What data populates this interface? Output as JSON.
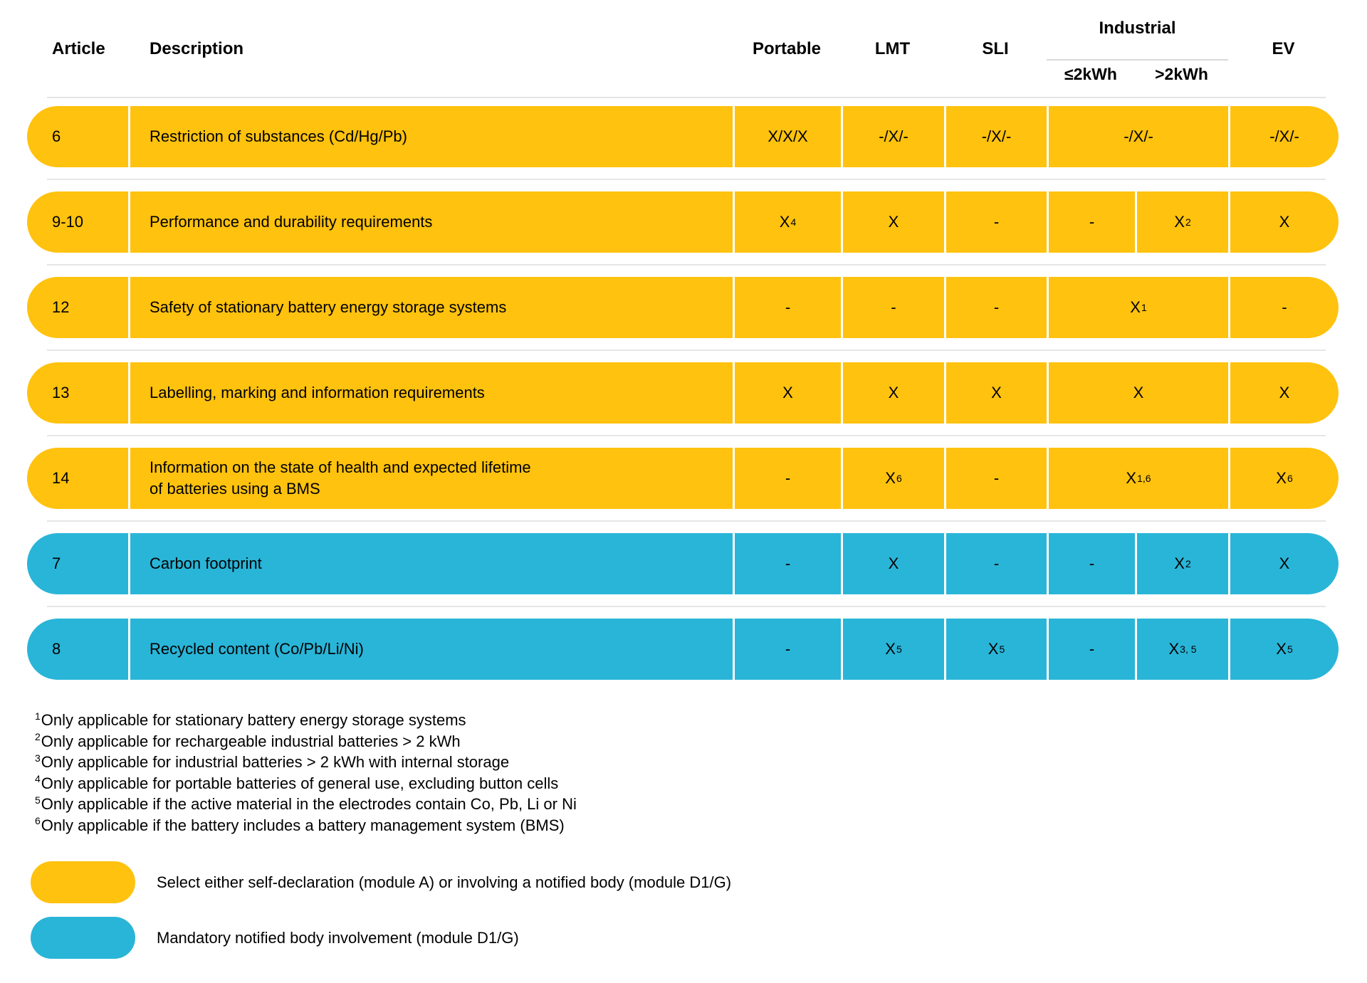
{
  "colors": {
    "yellow": "#FFC20E",
    "blue": "#29B5D8",
    "separator": "#E6E6E6",
    "industrial_underline": "#D9D9D9"
  },
  "header": {
    "article": "Article",
    "description": "Description",
    "portable": "Portable",
    "lmt": "LMT",
    "sli": "SLI",
    "industrial": "Industrial",
    "industrial_sub_le": "≤2kWh",
    "industrial_sub_gt": ">2kWh",
    "ev": "EV"
  },
  "rows": [
    {
      "article": "6",
      "description": "Restriction of substances (Cd/Hg/Pb)",
      "color": "yellow",
      "industrial_merged": true,
      "cells": {
        "portable": {
          "base": "X/X/X",
          "sup": ""
        },
        "lmt": {
          "base": "-/X/-",
          "sup": ""
        },
        "sli": {
          "base": "-/X/-",
          "sup": ""
        },
        "industrial": {
          "base": "-/X/-",
          "sup": ""
        },
        "ev": {
          "base": "-/X/-",
          "sup": ""
        }
      }
    },
    {
      "article": "9-10",
      "description": "Performance and durability requirements",
      "color": "yellow",
      "industrial_merged": false,
      "cells": {
        "portable": {
          "base": "X",
          "sup": "4"
        },
        "lmt": {
          "base": "X",
          "sup": ""
        },
        "sli": {
          "base": "-",
          "sup": ""
        },
        "industrial_le": {
          "base": "-",
          "sup": ""
        },
        "industrial_gt": {
          "base": "X",
          "sup": "2"
        },
        "ev": {
          "base": "X",
          "sup": ""
        }
      }
    },
    {
      "article": "12",
      "description": "Safety of stationary battery energy storage systems",
      "color": "yellow",
      "industrial_merged": true,
      "cells": {
        "portable": {
          "base": "-",
          "sup": ""
        },
        "lmt": {
          "base": "-",
          "sup": ""
        },
        "sli": {
          "base": "-",
          "sup": ""
        },
        "industrial": {
          "base": "X",
          "sup": "1"
        },
        "ev": {
          "base": "-",
          "sup": ""
        }
      }
    },
    {
      "article": "13",
      "description": "Labelling, marking and information requirements",
      "color": "yellow",
      "industrial_merged": true,
      "cells": {
        "portable": {
          "base": "X",
          "sup": ""
        },
        "lmt": {
          "base": "X",
          "sup": ""
        },
        "sli": {
          "base": "X",
          "sup": ""
        },
        "industrial": {
          "base": "X",
          "sup": ""
        },
        "ev": {
          "base": "X",
          "sup": ""
        }
      }
    },
    {
      "article": "14",
      "description": "Information on the state of health and expected lifetime\nof batteries using a BMS",
      "color": "yellow",
      "industrial_merged": true,
      "cells": {
        "portable": {
          "base": "-",
          "sup": ""
        },
        "lmt": {
          "base": "X",
          "sup": "6"
        },
        "sli": {
          "base": "-",
          "sup": ""
        },
        "industrial": {
          "base": "X",
          "sup": "1,6"
        },
        "ev": {
          "base": "X",
          "sup": "6"
        }
      }
    },
    {
      "article": "7",
      "description": "Carbon footprint",
      "color": "blue",
      "industrial_merged": false,
      "cells": {
        "portable": {
          "base": "-",
          "sup": ""
        },
        "lmt": {
          "base": "X",
          "sup": ""
        },
        "sli": {
          "base": "-",
          "sup": ""
        },
        "industrial_le": {
          "base": "-",
          "sup": ""
        },
        "industrial_gt": {
          "base": "X",
          "sup": "2"
        },
        "ev": {
          "base": "X",
          "sup": ""
        }
      }
    },
    {
      "article": "8",
      "description": "Recycled content (Co/Pb/Li/Ni)",
      "color": "blue",
      "industrial_merged": false,
      "cells": {
        "portable": {
          "base": "-",
          "sup": ""
        },
        "lmt": {
          "base": "X",
          "sup": "5"
        },
        "sli": {
          "base": "X",
          "sup": "5"
        },
        "industrial_le": {
          "base": "-",
          "sup": ""
        },
        "industrial_gt": {
          "base": "X",
          "sup": "3, 5"
        },
        "ev": {
          "base": "X",
          "sup": "5"
        }
      }
    }
  ],
  "footnotes": [
    {
      "sup": "1",
      "text": "Only applicable for stationary battery energy storage systems"
    },
    {
      "sup": "2",
      "text": "Only applicable for rechargeable industrial batteries > 2 kWh"
    },
    {
      "sup": "3",
      "text": "Only applicable for industrial batteries > 2 kWh with internal storage"
    },
    {
      "sup": "4",
      "text": "Only applicable for portable batteries of general use, excluding button cells"
    },
    {
      "sup": "5",
      "text": "Only applicable if the active material in the electrodes contain Co, Pb, Li or Ni"
    },
    {
      "sup": "6",
      "text": "Only applicable if the battery includes a battery management system (BMS)"
    }
  ],
  "legend": [
    {
      "color": "yellow",
      "text": "Select either self-declaration (module A) or involving a notified body (module D1/G)"
    },
    {
      "color": "blue",
      "text": "Mandatory notified body involvement (module D1/G)"
    }
  ]
}
